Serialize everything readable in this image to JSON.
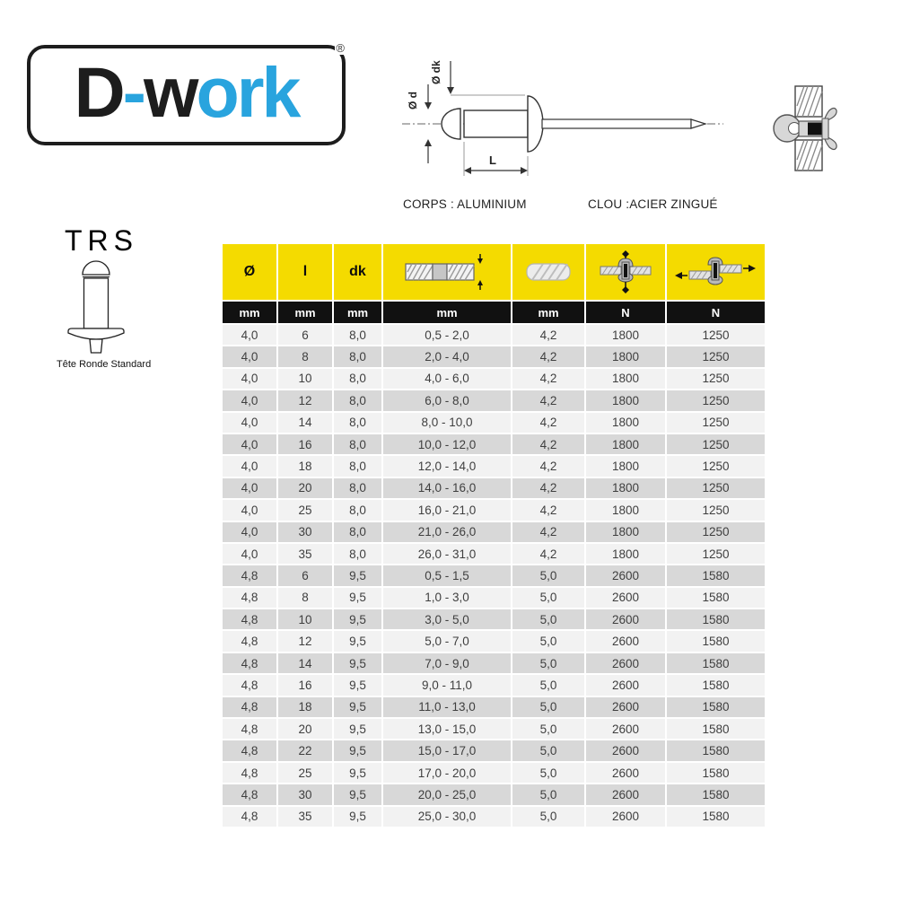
{
  "brand": {
    "logo_part1": "D",
    "logo_dash": "-",
    "logo_part2": "w",
    "logo_part3": "ork",
    "registered": "®"
  },
  "materials": {
    "body": "CORPS : ALUMINIUM",
    "mandrel": "CLOU :ACIER ZINGUÉ"
  },
  "diagram_labels": {
    "d": "Ø d",
    "dk": "Ø dk",
    "length": "L"
  },
  "product": {
    "code": "TRS",
    "head_type": "Tête Ronde Standard"
  },
  "table": {
    "columns": [
      {
        "label": "Ø",
        "unit": "mm",
        "icon": ""
      },
      {
        "label": "l",
        "unit": "mm",
        "icon": ""
      },
      {
        "label": "dk",
        "unit": "mm",
        "icon": ""
      },
      {
        "label": "",
        "unit": "mm",
        "icon": "grip-range-icon"
      },
      {
        "label": "",
        "unit": "mm",
        "icon": "drill-diameter-icon"
      },
      {
        "label": "",
        "unit": "N",
        "icon": "tensile-strength-icon"
      },
      {
        "label": "",
        "unit": "N",
        "icon": "shear-strength-icon"
      }
    ],
    "rows": [
      [
        "4,0",
        "6",
        "8,0",
        "0,5 - 2,0",
        "4,2",
        "1800",
        "1250"
      ],
      [
        "4,0",
        "8",
        "8,0",
        "2,0 - 4,0",
        "4,2",
        "1800",
        "1250"
      ],
      [
        "4,0",
        "10",
        "8,0",
        "4,0 - 6,0",
        "4,2",
        "1800",
        "1250"
      ],
      [
        "4,0",
        "12",
        "8,0",
        "6,0 - 8,0",
        "4,2",
        "1800",
        "1250"
      ],
      [
        "4,0",
        "14",
        "8,0",
        "8,0 - 10,0",
        "4,2",
        "1800",
        "1250"
      ],
      [
        "4,0",
        "16",
        "8,0",
        "10,0 - 12,0",
        "4,2",
        "1800",
        "1250"
      ],
      [
        "4,0",
        "18",
        "8,0",
        "12,0 - 14,0",
        "4,2",
        "1800",
        "1250"
      ],
      [
        "4,0",
        "20",
        "8,0",
        "14,0 - 16,0",
        "4,2",
        "1800",
        "1250"
      ],
      [
        "4,0",
        "25",
        "8,0",
        "16,0 - 21,0",
        "4,2",
        "1800",
        "1250"
      ],
      [
        "4,0",
        "30",
        "8,0",
        "21,0 - 26,0",
        "4,2",
        "1800",
        "1250"
      ],
      [
        "4,0",
        "35",
        "8,0",
        "26,0 - 31,0",
        "4,2",
        "1800",
        "1250"
      ],
      [
        "4,8",
        "6",
        "9,5",
        "0,5 - 1,5",
        "5,0",
        "2600",
        "1580"
      ],
      [
        "4,8",
        "8",
        "9,5",
        "1,0 - 3,0",
        "5,0",
        "2600",
        "1580"
      ],
      [
        "4,8",
        "10",
        "9,5",
        "3,0 - 5,0",
        "5,0",
        "2600",
        "1580"
      ],
      [
        "4,8",
        "12",
        "9,5",
        "5,0 - 7,0",
        "5,0",
        "2600",
        "1580"
      ],
      [
        "4,8",
        "14",
        "9,5",
        "7,0 - 9,0",
        "5,0",
        "2600",
        "1580"
      ],
      [
        "4,8",
        "16",
        "9,5",
        "9,0 - 11,0",
        "5,0",
        "2600",
        "1580"
      ],
      [
        "4,8",
        "18",
        "9,5",
        "11,0 - 13,0",
        "5,0",
        "2600",
        "1580"
      ],
      [
        "4,8",
        "20",
        "9,5",
        "13,0 - 15,0",
        "5,0",
        "2600",
        "1580"
      ],
      [
        "4,8",
        "22",
        "9,5",
        "15,0 - 17,0",
        "5,0",
        "2600",
        "1580"
      ],
      [
        "4,8",
        "25",
        "9,5",
        "17,0 - 20,0",
        "5,0",
        "2600",
        "1580"
      ],
      [
        "4,8",
        "30",
        "9,5",
        "20,0 - 25,0",
        "5,0",
        "2600",
        "1580"
      ],
      [
        "4,8",
        "35",
        "9,5",
        "25,0 - 30,0",
        "5,0",
        "2600",
        "1580"
      ]
    ]
  },
  "colors": {
    "accent_yellow": "#F4DB00",
    "accent_blue": "#29A4DE",
    "header_black": "#111111",
    "row_light": "#F2F2F2",
    "row_dark": "#D8D8D8"
  }
}
